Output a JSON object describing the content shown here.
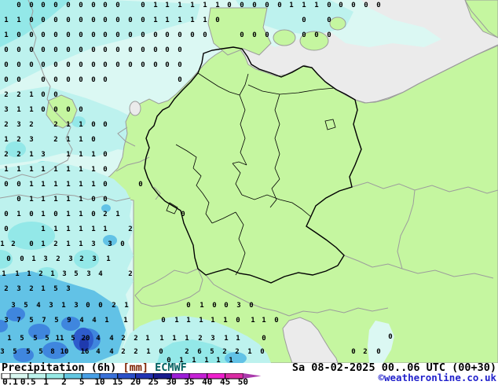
{
  "caption": {
    "title": "Precipitation (6h)",
    "unit": "[mm]",
    "model": "ECMWF",
    "datetime": "Sa 08-02-2025 00..06 UTC (00+30)",
    "copyright": "©weatheronline.co.uk",
    "title_color": "#000000",
    "unit_color": "#7a2000",
    "model_color": "#005f5f",
    "copyright_color": "#2222cc"
  },
  "legend": {
    "labels": [
      "0.1",
      "0.5",
      "1",
      "2",
      "5",
      "10",
      "15",
      "20",
      "25",
      "30",
      "35",
      "40",
      "45",
      "50"
    ],
    "segment_colors": [
      "#ffffff",
      "#d9f8f1",
      "#bdf3ec",
      "#97eae6",
      "#63c8e2",
      "#48a0e6",
      "#3a72da",
      "#2c50c8",
      "#2334b2",
      "#171c8e",
      "#9c1ed8",
      "#c521d6",
      "#ef1fcd",
      "#da2ba4"
    ],
    "arrow_color": "#aa3aac"
  },
  "map": {
    "colors": {
      "sea": "#ebebeb",
      "land": "#c5f6a0",
      "coast": "#9c9c9c",
      "border_de": "#000000",
      "p01": "#dbf8f3",
      "p05": "#bdf2ee",
      "p1": "#93e8e8",
      "p2": "#62c2e6",
      "p5": "#3f86de",
      "p10": "#2e5ccc",
      "p20": "#1f3aae"
    },
    "precip_values": [
      [
        24,
        6,
        "0"
      ],
      [
        40,
        6,
        "0"
      ],
      [
        55,
        6,
        "0"
      ],
      [
        71,
        6,
        "0"
      ],
      [
        87,
        6,
        "0"
      ],
      [
        103,
        6,
        "0"
      ],
      [
        119,
        6,
        "0"
      ],
      [
        134,
        6,
        "0"
      ],
      [
        150,
        6,
        "0"
      ],
      [
        182,
        6,
        "0"
      ],
      [
        198,
        6,
        "1"
      ],
      [
        213,
        6,
        "1"
      ],
      [
        229,
        6,
        "1"
      ],
      [
        245,
        6,
        "1"
      ],
      [
        261,
        6,
        "1"
      ],
      [
        277,
        6,
        "1"
      ],
      [
        292,
        6,
        "0"
      ],
      [
        308,
        6,
        "0"
      ],
      [
        324,
        6,
        "0"
      ],
      [
        340,
        6,
        "0"
      ],
      [
        356,
        6,
        "0"
      ],
      [
        371,
        6,
        "1"
      ],
      [
        387,
        6,
        "1"
      ],
      [
        403,
        6,
        "1"
      ],
      [
        419,
        6,
        "0"
      ],
      [
        434,
        6,
        "0"
      ],
      [
        450,
        6,
        "0"
      ],
      [
        466,
        6,
        "0"
      ],
      [
        482,
        6,
        "0"
      ],
      [
        8,
        25,
        "1"
      ],
      [
        24,
        25,
        "1"
      ],
      [
        40,
        25,
        "0"
      ],
      [
        55,
        25,
        "0"
      ],
      [
        71,
        25,
        "0"
      ],
      [
        87,
        25,
        "0"
      ],
      [
        103,
        25,
        "0"
      ],
      [
        119,
        25,
        "0"
      ],
      [
        134,
        25,
        "0"
      ],
      [
        150,
        25,
        "0"
      ],
      [
        166,
        25,
        "0"
      ],
      [
        182,
        25,
        "0"
      ],
      [
        198,
        25,
        "1"
      ],
      [
        213,
        25,
        "1"
      ],
      [
        229,
        25,
        "1"
      ],
      [
        245,
        25,
        "1"
      ],
      [
        261,
        25,
        "1"
      ],
      [
        277,
        25,
        "0"
      ],
      [
        387,
        25,
        "0"
      ],
      [
        419,
        25,
        "0"
      ],
      [
        8,
        44,
        "1"
      ],
      [
        24,
        44,
        "0"
      ],
      [
        40,
        44,
        "0"
      ],
      [
        55,
        44,
        "0"
      ],
      [
        71,
        44,
        "0"
      ],
      [
        87,
        44,
        "0"
      ],
      [
        103,
        44,
        "0"
      ],
      [
        119,
        44,
        "0"
      ],
      [
        134,
        44,
        "0"
      ],
      [
        150,
        44,
        "0"
      ],
      [
        166,
        44,
        "0"
      ],
      [
        182,
        44,
        "0"
      ],
      [
        198,
        44,
        "0"
      ],
      [
        213,
        44,
        "0"
      ],
      [
        229,
        44,
        "0"
      ],
      [
        245,
        44,
        "0"
      ],
      [
        261,
        44,
        "0"
      ],
      [
        308,
        44,
        "0"
      ],
      [
        324,
        44,
        "0"
      ],
      [
        340,
        44,
        "0"
      ],
      [
        387,
        44,
        "0"
      ],
      [
        403,
        44,
        "0"
      ],
      [
        419,
        44,
        "0"
      ],
      [
        8,
        63,
        "0"
      ],
      [
        24,
        63,
        "0"
      ],
      [
        40,
        63,
        "0"
      ],
      [
        55,
        63,
        "0"
      ],
      [
        71,
        63,
        "0"
      ],
      [
        87,
        63,
        "0"
      ],
      [
        103,
        63,
        "0"
      ],
      [
        119,
        63,
        "0"
      ],
      [
        134,
        63,
        "0"
      ],
      [
        150,
        63,
        "0"
      ],
      [
        166,
        63,
        "0"
      ],
      [
        182,
        63,
        "0"
      ],
      [
        198,
        63,
        "0"
      ],
      [
        213,
        63,
        "0"
      ],
      [
        229,
        63,
        "0"
      ],
      [
        8,
        82,
        "0"
      ],
      [
        24,
        82,
        "0"
      ],
      [
        40,
        82,
        "0"
      ],
      [
        55,
        82,
        "0"
      ],
      [
        71,
        82,
        "0"
      ],
      [
        87,
        82,
        "0"
      ],
      [
        103,
        82,
        "0"
      ],
      [
        119,
        82,
        "0"
      ],
      [
        134,
        82,
        "0"
      ],
      [
        150,
        82,
        "0"
      ],
      [
        166,
        82,
        "0"
      ],
      [
        182,
        82,
        "0"
      ],
      [
        198,
        82,
        "0"
      ],
      [
        213,
        82,
        "0"
      ],
      [
        229,
        82,
        "0"
      ],
      [
        8,
        101,
        "0"
      ],
      [
        24,
        101,
        "0"
      ],
      [
        55,
        101,
        "0"
      ],
      [
        71,
        101,
        "0"
      ],
      [
        87,
        101,
        "0"
      ],
      [
        103,
        101,
        "0"
      ],
      [
        119,
        101,
        "0"
      ],
      [
        134,
        101,
        "0"
      ],
      [
        229,
        101,
        "0"
      ],
      [
        8,
        120,
        "2"
      ],
      [
        24,
        120,
        "2"
      ],
      [
        40,
        120,
        "1"
      ],
      [
        55,
        120,
        "0"
      ],
      [
        71,
        120,
        "0"
      ],
      [
        8,
        139,
        "3"
      ],
      [
        24,
        139,
        "1"
      ],
      [
        40,
        139,
        "1"
      ],
      [
        55,
        139,
        "0"
      ],
      [
        71,
        139,
        "0"
      ],
      [
        87,
        139,
        "0"
      ],
      [
        103,
        139,
        "0"
      ],
      [
        8,
        158,
        "2"
      ],
      [
        24,
        158,
        "3"
      ],
      [
        40,
        158,
        "2"
      ],
      [
        71,
        158,
        "2"
      ],
      [
        87,
        158,
        "1"
      ],
      [
        103,
        158,
        "1"
      ],
      [
        119,
        158,
        "0"
      ],
      [
        134,
        158,
        "0"
      ],
      [
        8,
        177,
        "1"
      ],
      [
        24,
        177,
        "2"
      ],
      [
        40,
        177,
        "3"
      ],
      [
        71,
        177,
        "2"
      ],
      [
        87,
        177,
        "1"
      ],
      [
        103,
        177,
        "1"
      ],
      [
        119,
        177,
        "0"
      ],
      [
        8,
        196,
        "2"
      ],
      [
        24,
        196,
        "2"
      ],
      [
        40,
        196,
        "1"
      ],
      [
        55,
        196,
        "3"
      ],
      [
        87,
        196,
        "1"
      ],
      [
        103,
        196,
        "1"
      ],
      [
        119,
        196,
        "1"
      ],
      [
        134,
        196,
        "0"
      ],
      [
        8,
        215,
        "1"
      ],
      [
        24,
        215,
        "1"
      ],
      [
        40,
        215,
        "1"
      ],
      [
        55,
        215,
        "1"
      ],
      [
        71,
        215,
        "1"
      ],
      [
        87,
        215,
        "1"
      ],
      [
        103,
        215,
        "1"
      ],
      [
        119,
        215,
        "1"
      ],
      [
        134,
        215,
        "0"
      ],
      [
        8,
        234,
        "0"
      ],
      [
        24,
        234,
        "0"
      ],
      [
        40,
        234,
        "1"
      ],
      [
        55,
        234,
        "1"
      ],
      [
        71,
        234,
        "1"
      ],
      [
        87,
        234,
        "1"
      ],
      [
        103,
        234,
        "1"
      ],
      [
        119,
        234,
        "1"
      ],
      [
        134,
        234,
        "0"
      ],
      [
        179,
        234,
        "0"
      ],
      [
        24,
        253,
        "0"
      ],
      [
        40,
        253,
        "1"
      ],
      [
        55,
        253,
        "1"
      ],
      [
        71,
        253,
        "1"
      ],
      [
        87,
        253,
        "1"
      ],
      [
        103,
        253,
        "1"
      ],
      [
        119,
        253,
        "0"
      ],
      [
        134,
        253,
        "0"
      ],
      [
        8,
        272,
        "0"
      ],
      [
        24,
        272,
        "1"
      ],
      [
        40,
        272,
        "0"
      ],
      [
        55,
        272,
        "1"
      ],
      [
        71,
        272,
        "0"
      ],
      [
        87,
        272,
        "1"
      ],
      [
        103,
        272,
        "1"
      ],
      [
        119,
        272,
        "0"
      ],
      [
        134,
        272,
        "2"
      ],
      [
        150,
        272,
        "1"
      ],
      [
        233,
        272,
        "0"
      ],
      [
        8,
        291,
        "0"
      ],
      [
        55,
        291,
        "1"
      ],
      [
        71,
        291,
        "1"
      ],
      [
        87,
        291,
        "1"
      ],
      [
        103,
        291,
        "1"
      ],
      [
        119,
        291,
        "1"
      ],
      [
        134,
        291,
        "1"
      ],
      [
        166,
        291,
        "2"
      ],
      [
        3,
        310,
        "1"
      ],
      [
        17,
        310,
        "2"
      ],
      [
        40,
        310,
        "0"
      ],
      [
        55,
        310,
        "1"
      ],
      [
        71,
        310,
        "2"
      ],
      [
        87,
        310,
        "1"
      ],
      [
        103,
        310,
        "1"
      ],
      [
        119,
        310,
        "3"
      ],
      [
        140,
        310,
        "3"
      ],
      [
        156,
        310,
        "0"
      ],
      [
        11,
        329,
        "0"
      ],
      [
        28,
        329,
        "0"
      ],
      [
        43,
        329,
        "1"
      ],
      [
        58,
        329,
        "3"
      ],
      [
        74,
        329,
        "2"
      ],
      [
        90,
        329,
        "3"
      ],
      [
        104,
        329,
        "2"
      ],
      [
        120,
        329,
        "3"
      ],
      [
        138,
        329,
        "1"
      ],
      [
        5,
        348,
        "1"
      ],
      [
        22,
        348,
        "1"
      ],
      [
        37,
        348,
        "1"
      ],
      [
        52,
        348,
        "2"
      ],
      [
        67,
        348,
        "1"
      ],
      [
        82,
        348,
        "3"
      ],
      [
        97,
        348,
        "5"
      ],
      [
        113,
        348,
        "3"
      ],
      [
        128,
        348,
        "4"
      ],
      [
        166,
        348,
        "2"
      ],
      [
        8,
        367,
        "2"
      ],
      [
        24,
        367,
        "3"
      ],
      [
        40,
        367,
        "2"
      ],
      [
        55,
        367,
        "1"
      ],
      [
        71,
        367,
        "5"
      ],
      [
        87,
        367,
        "3"
      ],
      [
        17,
        388,
        "3"
      ],
      [
        33,
        388,
        "5"
      ],
      [
        49,
        388,
        "4"
      ],
      [
        65,
        388,
        "3"
      ],
      [
        81,
        388,
        "1"
      ],
      [
        97,
        388,
        "3"
      ],
      [
        112,
        388,
        "0"
      ],
      [
        128,
        388,
        "0"
      ],
      [
        145,
        388,
        "2"
      ],
      [
        161,
        388,
        "1"
      ],
      [
        240,
        388,
        "0"
      ],
      [
        257,
        388,
        "1"
      ],
      [
        273,
        388,
        "0"
      ],
      [
        288,
        388,
        "0"
      ],
      [
        304,
        388,
        "3"
      ],
      [
        320,
        388,
        "0"
      ],
      [
        8,
        407,
        "3"
      ],
      [
        24,
        407,
        "7"
      ],
      [
        40,
        407,
        "5"
      ],
      [
        56,
        407,
        "7"
      ],
      [
        72,
        407,
        "5"
      ],
      [
        88,
        407,
        "9"
      ],
      [
        104,
        407,
        "4"
      ],
      [
        120,
        407,
        "4"
      ],
      [
        136,
        407,
        "1"
      ],
      [
        160,
        407,
        "1"
      ],
      [
        208,
        407,
        "0"
      ],
      [
        225,
        407,
        "1"
      ],
      [
        240,
        407,
        "1"
      ],
      [
        256,
        407,
        "1"
      ],
      [
        271,
        407,
        "1"
      ],
      [
        287,
        407,
        "1"
      ],
      [
        303,
        407,
        "0"
      ],
      [
        322,
        407,
        "1"
      ],
      [
        336,
        407,
        "1"
      ],
      [
        352,
        407,
        "0"
      ],
      [
        12,
        430,
        "1"
      ],
      [
        28,
        430,
        "5"
      ],
      [
        45,
        430,
        "5"
      ],
      [
        60,
        430,
        "5"
      ],
      [
        76,
        430,
        "11"
      ],
      [
        93,
        430,
        "5"
      ],
      [
        109,
        430,
        "20"
      ],
      [
        125,
        430,
        "4"
      ],
      [
        142,
        430,
        "4"
      ],
      [
        157,
        430,
        "2"
      ],
      [
        173,
        430,
        "2"
      ],
      [
        188,
        430,
        "1"
      ],
      [
        206,
        430,
        "1"
      ],
      [
        222,
        430,
        "1"
      ],
      [
        238,
        430,
        "1"
      ],
      [
        255,
        430,
        "2"
      ],
      [
        271,
        430,
        "3"
      ],
      [
        288,
        430,
        "1"
      ],
      [
        303,
        430,
        "1"
      ],
      [
        336,
        430,
        "0"
      ],
      [
        497,
        428,
        "0"
      ],
      [
        3,
        447,
        "3"
      ],
      [
        19,
        447,
        "5"
      ],
      [
        36,
        447,
        "5"
      ],
      [
        52,
        447,
        "5"
      ],
      [
        67,
        447,
        "8"
      ],
      [
        82,
        447,
        "10"
      ],
      [
        108,
        447,
        "16"
      ],
      [
        125,
        447,
        "4"
      ],
      [
        142,
        447,
        "4"
      ],
      [
        157,
        447,
        "2"
      ],
      [
        173,
        447,
        "2"
      ],
      [
        189,
        447,
        "1"
      ],
      [
        205,
        447,
        "0"
      ],
      [
        238,
        447,
        "2"
      ],
      [
        254,
        447,
        "6"
      ],
      [
        270,
        447,
        "5"
      ],
      [
        286,
        447,
        "2"
      ],
      [
        302,
        447,
        "2"
      ],
      [
        318,
        447,
        "1"
      ],
      [
        334,
        447,
        "0"
      ],
      [
        450,
        447,
        "0"
      ],
      [
        465,
        447,
        "2"
      ],
      [
        482,
        447,
        "0"
      ],
      [
        215,
        458,
        "0"
      ],
      [
        231,
        458,
        "1"
      ],
      [
        247,
        458,
        "1"
      ],
      [
        263,
        458,
        "1"
      ],
      [
        278,
        458,
        "1"
      ],
      [
        294,
        458,
        "1"
      ]
    ]
  }
}
